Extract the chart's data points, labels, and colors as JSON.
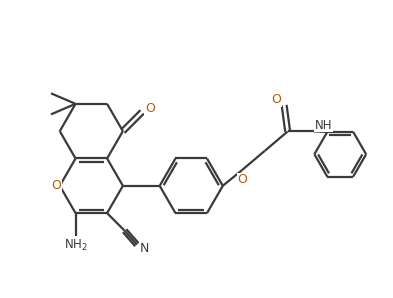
{
  "bg_color": "#ffffff",
  "bond_color": "#3a3a3a",
  "o_color": "#b85c00",
  "n_color": "#3a3a3a",
  "lw": 1.6,
  "figsize": [
    3.93,
    2.98
  ],
  "dpi": 100,
  "xlim": [
    0,
    11
  ],
  "ylim": [
    0,
    8.5
  ]
}
